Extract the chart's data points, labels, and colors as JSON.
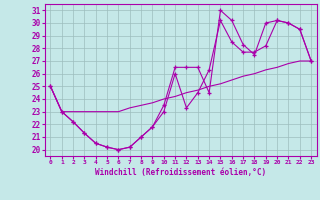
{
  "xlabel": "Windchill (Refroidissement éolien,°C)",
  "ylabel": "",
  "xlim": [
    -0.5,
    23.5
  ],
  "ylim": [
    19.5,
    31.5
  ],
  "yticks": [
    20,
    21,
    22,
    23,
    24,
    25,
    26,
    27,
    28,
    29,
    30,
    31
  ],
  "xticks": [
    0,
    1,
    2,
    3,
    4,
    5,
    6,
    7,
    8,
    9,
    10,
    11,
    12,
    13,
    14,
    15,
    16,
    17,
    18,
    19,
    20,
    21,
    22,
    23
  ],
  "background_color": "#c5e8e8",
  "grid_color": "#9dbebe",
  "line_color": "#aa00aa",
  "line1_x": [
    0,
    1,
    2,
    3,
    4,
    5,
    6,
    7,
    8,
    9,
    10,
    11,
    12,
    13,
    14,
    15,
    16,
    17,
    18,
    19,
    20,
    21,
    22,
    23
  ],
  "line1_y": [
    25.0,
    23.0,
    22.2,
    21.3,
    20.5,
    20.2,
    20.0,
    20.2,
    21.0,
    21.8,
    23.5,
    26.5,
    26.5,
    26.5,
    24.5,
    31.0,
    30.2,
    28.3,
    27.5,
    30.0,
    30.2,
    30.0,
    29.5,
    27.0
  ],
  "line2_x": [
    0,
    1,
    2,
    3,
    4,
    5,
    6,
    7,
    8,
    9,
    10,
    11,
    12,
    13,
    14,
    15,
    16,
    17,
    18,
    19,
    20,
    21,
    22,
    23
  ],
  "line2_y": [
    25.0,
    23.0,
    23.0,
    23.0,
    23.0,
    23.0,
    23.0,
    23.3,
    23.5,
    23.7,
    24.0,
    24.2,
    24.5,
    24.7,
    25.0,
    25.2,
    25.5,
    25.8,
    26.0,
    26.3,
    26.5,
    26.8,
    27.0,
    27.0
  ],
  "line3_x": [
    0,
    1,
    2,
    3,
    4,
    5,
    6,
    7,
    8,
    9,
    10,
    11,
    12,
    13,
    14,
    15,
    16,
    17,
    18,
    19,
    20,
    21,
    22,
    23
  ],
  "line3_y": [
    25.0,
    23.0,
    22.2,
    21.3,
    20.5,
    20.2,
    20.0,
    20.2,
    21.0,
    21.8,
    23.0,
    26.0,
    23.3,
    24.5,
    26.3,
    30.2,
    28.5,
    27.7,
    27.7,
    28.2,
    30.2,
    30.0,
    29.5,
    27.0
  ]
}
